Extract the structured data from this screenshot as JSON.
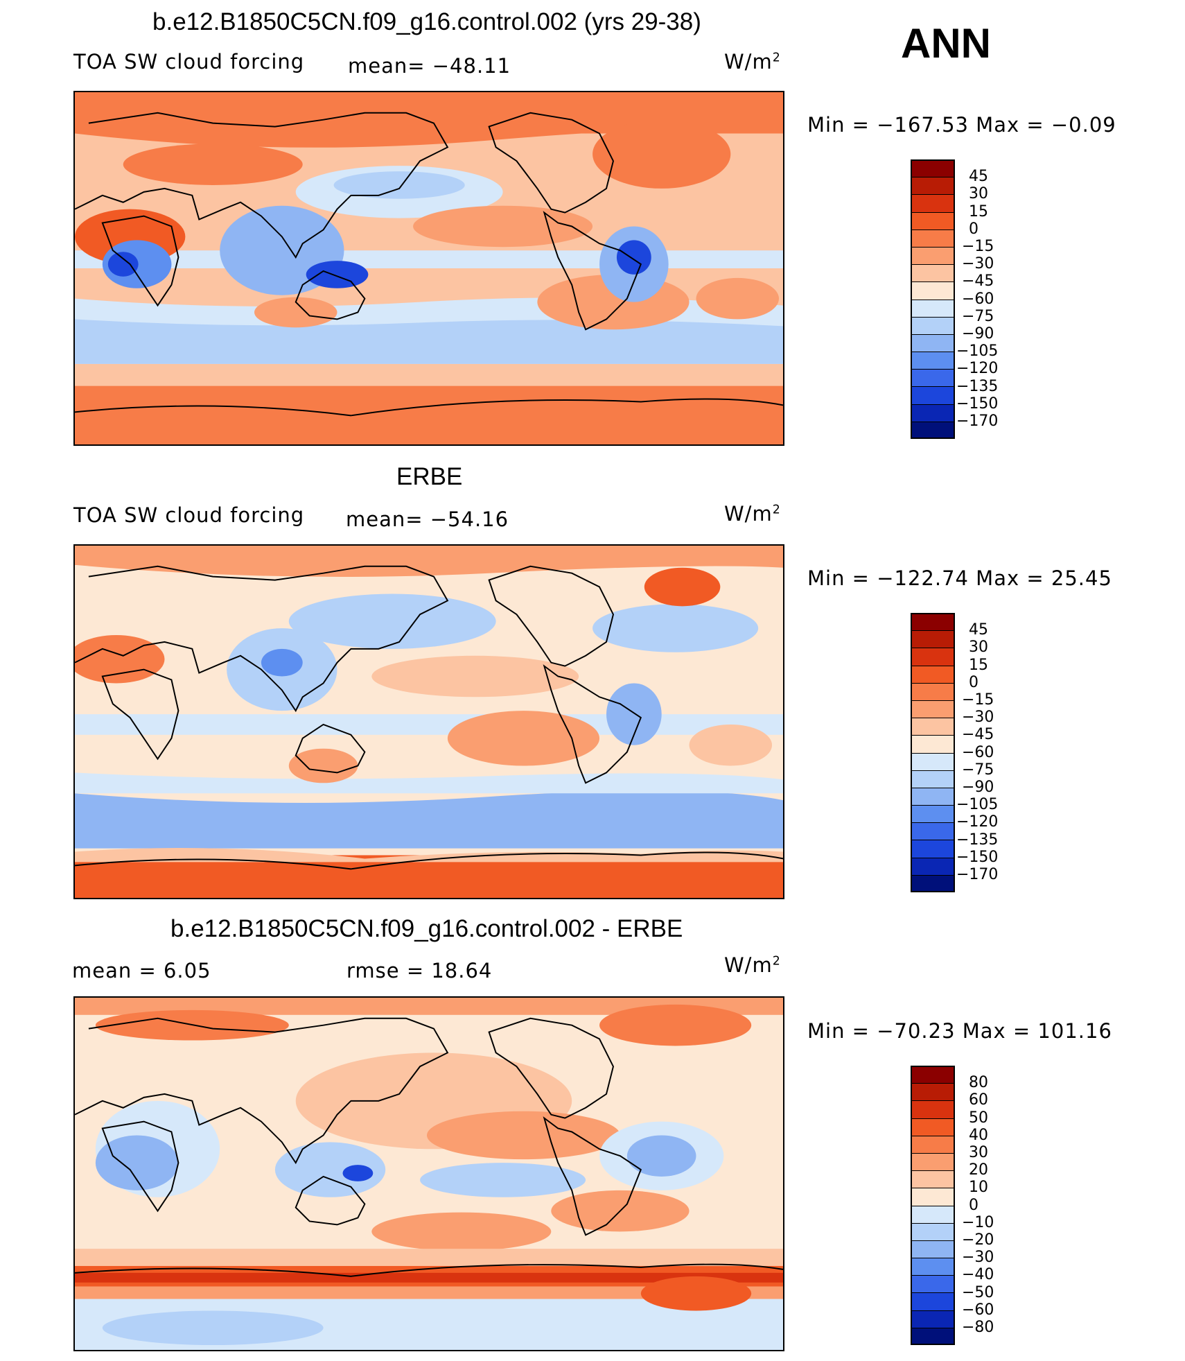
{
  "season": "ANN",
  "panels": [
    {
      "title": "b.e12.B1850C5CN.f09_g16.control.002 (yrs 29-38)",
      "field": "TOA SW cloud forcing",
      "stat1": "mean=  −48.11",
      "stat2": "",
      "units": "W/m",
      "units_sup": "2",
      "minmax": "Min  =  −167.53  Max  =    −0.09",
      "colorbar_labels": [
        "45",
        "30",
        "15",
        "0",
        "−15",
        "−30",
        "−45",
        "−60",
        "−75",
        "−90",
        "−105",
        "−120",
        "−135",
        "−150",
        "−170"
      ]
    },
    {
      "title": "ERBE",
      "field": "TOA SW cloud forcing",
      "stat1": "mean=  −54.16",
      "stat2": "",
      "units": "W/m",
      "units_sup": "2",
      "minmax": "Min  =  −122.74  Max  =    25.45",
      "colorbar_labels": [
        "45",
        "30",
        "15",
        "0",
        "−15",
        "−30",
        "−45",
        "−60",
        "−75",
        "−90",
        "−105",
        "−120",
        "−135",
        "−150",
        "−170"
      ]
    },
    {
      "title": "b.e12.B1850C5CN.f09_g16.control.002 - ERBE",
      "field": "mean =     6.05",
      "stat1": "rmse  =    18.64",
      "stat2": "",
      "units": "W/m",
      "units_sup": "2",
      "minmax": "Min  =  −70.23  Max  =  101.16",
      "colorbar_labels": [
        "80",
        "60",
        "50",
        "40",
        "30",
        "20",
        "10",
        "0",
        "−10",
        "−20",
        "−30",
        "−40",
        "−50",
        "−60",
        "−80"
      ]
    }
  ],
  "colors": {
    "scale": [
      "#8b0000",
      "#b81c05",
      "#d9330f",
      "#f15a24",
      "#f77c48",
      "#fa9e70",
      "#fcc4a2",
      "#fde8d4",
      "#d6e8fa",
      "#b3d1f8",
      "#8fb5f3",
      "#5d8ff0",
      "#3a68ea",
      "#1c46dc",
      "#0a26b4",
      "#00107a"
    ]
  }
}
